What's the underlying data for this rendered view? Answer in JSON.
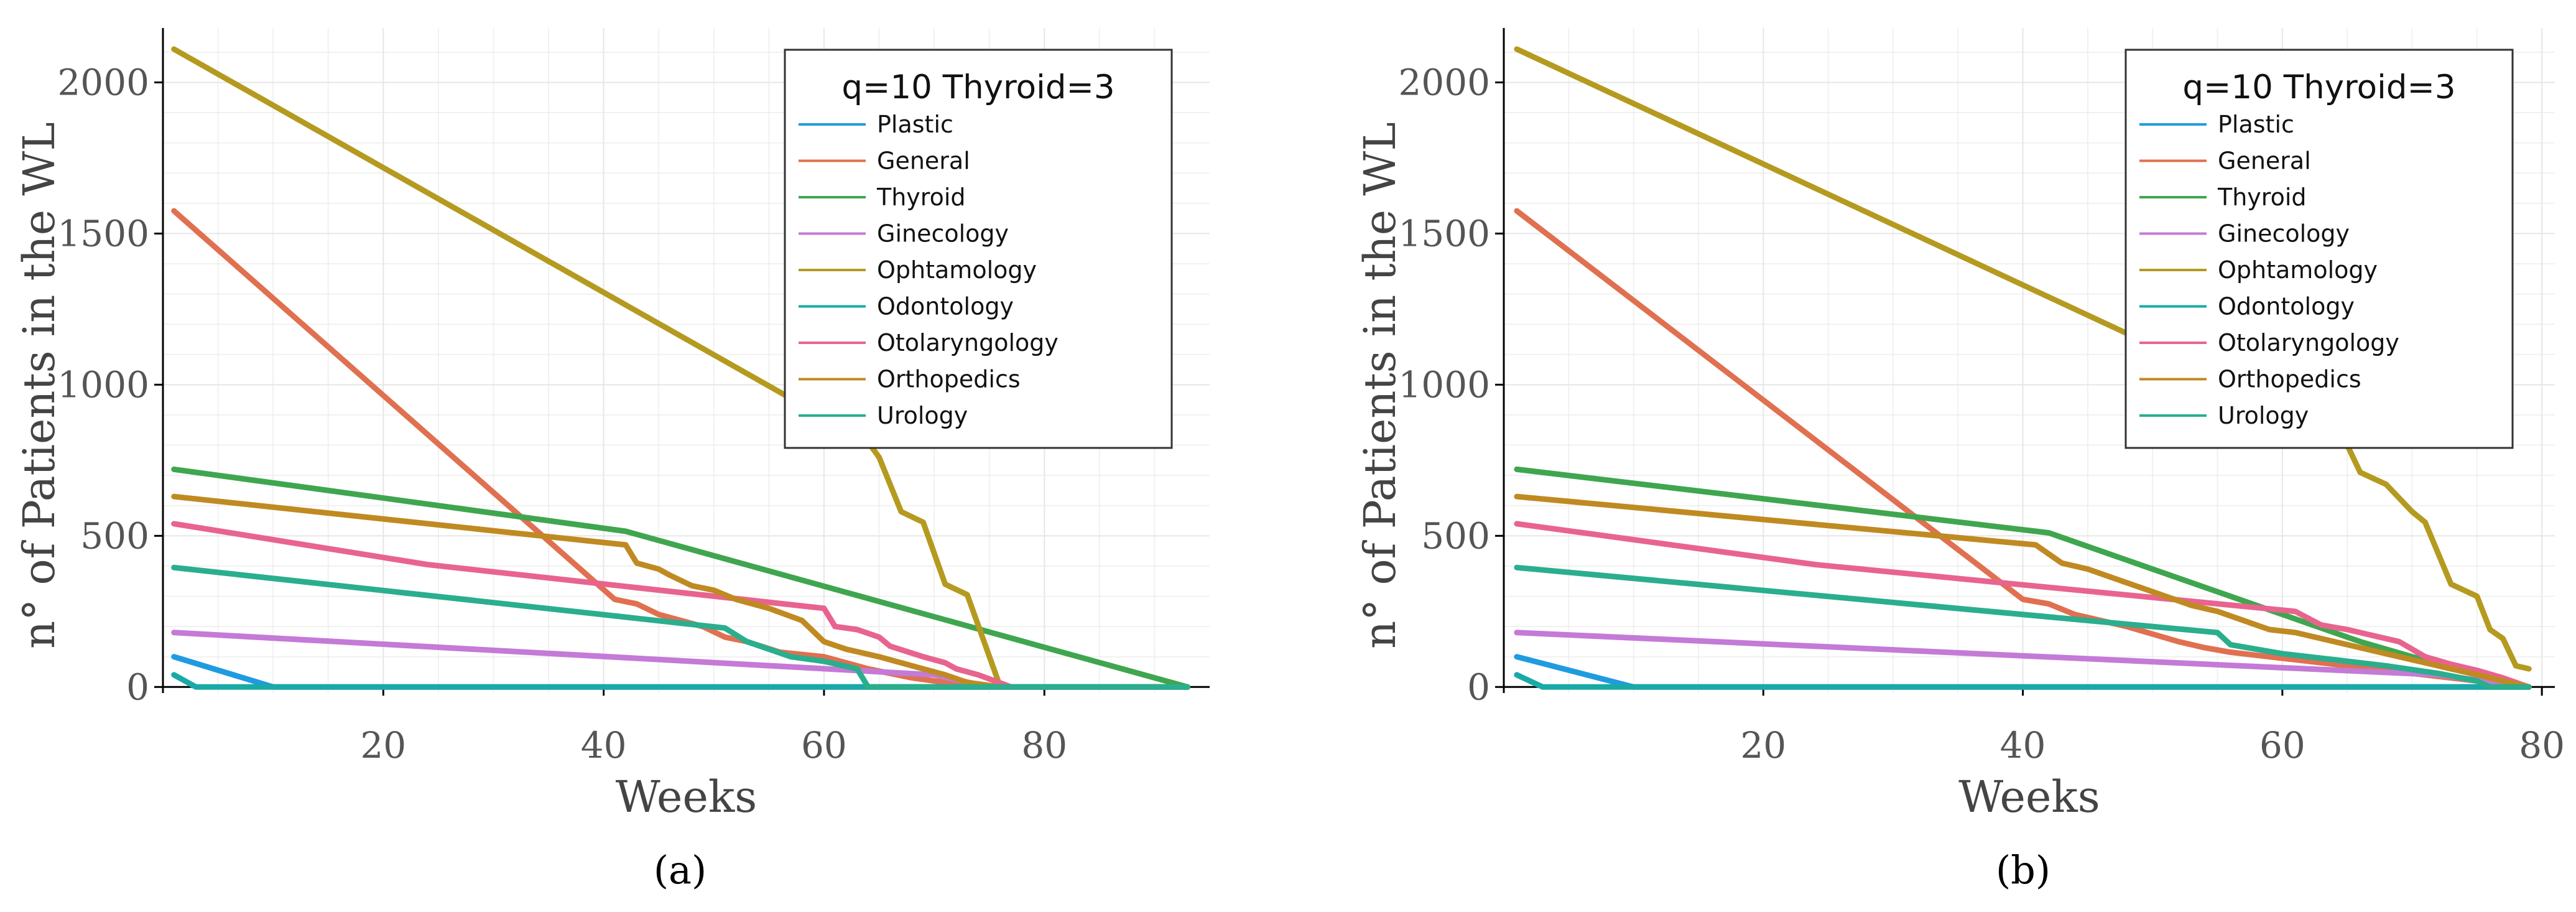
{
  "colors": {
    "Plastic": "#1f9be0",
    "General": "#e07050",
    "Thyroid": "#3fa64f",
    "Ginecology": "#c47ad6",
    "Ophtamology": "#b59a20",
    "Odontology": "#19aaa8",
    "Otolaryngology": "#e8648e",
    "Orthopedics": "#c08a22",
    "Urology": "#2aae8e"
  },
  "chart_data": [
    {
      "type": "line",
      "panel_label": "(a)",
      "title": "",
      "xlabel": "Weeks",
      "ylabel": "n° of Patients in the WL",
      "xlim": [
        0,
        95
      ],
      "ylim": [
        -20,
        2180
      ],
      "xticks": [
        20,
        40,
        60,
        80
      ],
      "yticks": [
        0,
        500,
        1000,
        1500,
        2000
      ],
      "grid": true,
      "legend": {
        "title": "q=10 Thyroid=3",
        "position": "top-right",
        "entries": [
          "Plastic",
          "General",
          "Thyroid",
          "Ginecology",
          "Ophtamology",
          "Odontology",
          "Otolaryngology",
          "Orthopedics",
          "Urology"
        ]
      },
      "series": [
        {
          "name": "Plastic",
          "x": [
            1,
            10,
            93
          ],
          "y": [
            100,
            0,
            0
          ]
        },
        {
          "name": "General",
          "x": [
            1,
            41,
            43,
            45,
            47,
            49,
            51,
            53,
            56,
            60,
            64,
            68,
            72,
            75
          ],
          "y": [
            1575,
            290,
            275,
            240,
            220,
            200,
            165,
            150,
            115,
            100,
            60,
            30,
            10,
            0
          ]
        },
        {
          "name": "Thyroid",
          "x": [
            1,
            42,
            93
          ],
          "y": [
            720,
            515,
            0
          ]
        },
        {
          "name": "Ginecology",
          "x": [
            1,
            70,
            75
          ],
          "y": [
            180,
            40,
            0
          ]
        },
        {
          "name": "Ophtamology",
          "x": [
            1,
            64,
            65,
            67,
            69,
            71,
            73,
            76,
            93
          ],
          "y": [
            2110,
            810,
            760,
            580,
            545,
            340,
            305,
            0,
            0
          ]
        },
        {
          "name": "Odontology",
          "x": [
            1,
            3,
            93
          ],
          "y": [
            40,
            0,
            0
          ]
        },
        {
          "name": "Otolaryngology",
          "x": [
            1,
            24,
            60,
            61,
            63,
            65,
            66,
            69,
            71,
            72,
            74,
            77
          ],
          "y": [
            540,
            405,
            260,
            200,
            190,
            165,
            135,
            100,
            80,
            60,
            40,
            0
          ]
        },
        {
          "name": "Orthopedics",
          "x": [
            1,
            42,
            43,
            45,
            46,
            48,
            50,
            52,
            55,
            58,
            60,
            62,
            65,
            68,
            71,
            73,
            76
          ],
          "y": [
            630,
            470,
            410,
            390,
            370,
            335,
            320,
            290,
            260,
            220,
            150,
            125,
            100,
            70,
            40,
            15,
            0
          ]
        },
        {
          "name": "Urology",
          "x": [
            1,
            51,
            53,
            55,
            57,
            60,
            63,
            64,
            93
          ],
          "y": [
            395,
            195,
            150,
            125,
            100,
            85,
            60,
            0,
            0
          ]
        }
      ]
    },
    {
      "type": "line",
      "panel_label": "(b)",
      "title": "",
      "xlabel": "Weeks",
      "ylabel": "n° of Patients in the WL",
      "xlim": [
        0,
        81
      ],
      "ylim": [
        -20,
        2180
      ],
      "xticks": [
        20,
        40,
        60,
        80
      ],
      "yticks": [
        0,
        500,
        1000,
        1500,
        2000
      ],
      "grid": true,
      "legend": {
        "title": "q=10 Thyroid=3",
        "position": "top-right",
        "entries": [
          "Plastic",
          "General",
          "Thyroid",
          "Ginecology",
          "Ophtamology",
          "Odontology",
          "Otolaryngology",
          "Orthopedics",
          "Urology"
        ]
      },
      "series": [
        {
          "name": "Plastic",
          "x": [
            1,
            10,
            79
          ],
          "y": [
            100,
            0,
            0
          ]
        },
        {
          "name": "General",
          "x": [
            1,
            40,
            42,
            44,
            46,
            48,
            50,
            52,
            54,
            56,
            58,
            60,
            64,
            68,
            72,
            76,
            79
          ],
          "y": [
            1575,
            290,
            275,
            240,
            220,
            200,
            175,
            150,
            130,
            115,
            105,
            95,
            75,
            55,
            35,
            15,
            0
          ]
        },
        {
          "name": "Thyroid",
          "x": [
            1,
            42,
            66,
            70,
            74,
            77,
            79
          ],
          "y": [
            720,
            510,
            150,
            100,
            60,
            20,
            0
          ]
        },
        {
          "name": "Ginecology",
          "x": [
            1,
            72,
            79
          ],
          "y": [
            180,
            40,
            0
          ]
        },
        {
          "name": "Ophtamology",
          "x": [
            1,
            64,
            65,
            66,
            68,
            70,
            71,
            73,
            75,
            76,
            77,
            78,
            79
          ],
          "y": [
            2110,
            850,
            800,
            710,
            670,
            580,
            545,
            340,
            300,
            190,
            160,
            70,
            60
          ]
        },
        {
          "name": "Odontology",
          "x": [
            1,
            3,
            79
          ],
          "y": [
            40,
            0,
            0
          ]
        },
        {
          "name": "Otolaryngology",
          "x": [
            1,
            24,
            61,
            63,
            65,
            67,
            69,
            71,
            73,
            75,
            77,
            79
          ],
          "y": [
            540,
            405,
            250,
            205,
            190,
            170,
            150,
            100,
            75,
            55,
            30,
            0
          ]
        },
        {
          "name": "Orthopedics",
          "x": [
            1,
            41,
            43,
            45,
            47,
            49,
            51,
            53,
            55,
            57,
            59,
            61,
            63,
            65,
            67,
            69,
            71,
            73,
            75,
            77,
            79
          ],
          "y": [
            630,
            470,
            410,
            390,
            360,
            330,
            300,
            270,
            250,
            220,
            190,
            180,
            160,
            140,
            120,
            100,
            80,
            60,
            40,
            20,
            0
          ]
        },
        {
          "name": "Urology",
          "x": [
            1,
            55,
            56,
            60,
            64,
            68,
            72,
            75,
            76,
            79
          ],
          "y": [
            395,
            180,
            140,
            110,
            90,
            70,
            45,
            20,
            0,
            0
          ]
        }
      ]
    }
  ]
}
